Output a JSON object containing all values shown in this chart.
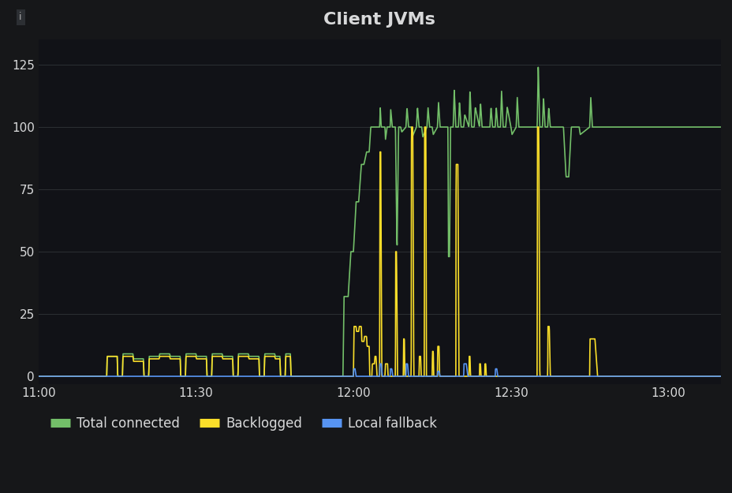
{
  "title": "Client JVMs",
  "bg_color": "#161719",
  "plot_bg_color": "#111217",
  "grid_color": "#2c2f33",
  "text_color": "#d8d9da",
  "ylim": [
    -3,
    135
  ],
  "yticks": [
    0,
    25,
    50,
    75,
    100,
    125
  ],
  "xticks_labels": [
    "11:00",
    "11:30",
    "12:00",
    "12:30",
    "13:00"
  ],
  "xtick_positions": [
    0,
    30,
    60,
    90,
    120
  ],
  "xlim": [
    0,
    130
  ],
  "legend": [
    {
      "label": "Total connected",
      "color": "#73bf69"
    },
    {
      "label": "Backlogged",
      "color": "#fade2a"
    },
    {
      "label": "Local fallback",
      "color": "#5794f2"
    }
  ],
  "tc_color": "#73bf69",
  "bl_color": "#fade2a",
  "lf_color": "#5794f2",
  "linewidth": 1.2
}
